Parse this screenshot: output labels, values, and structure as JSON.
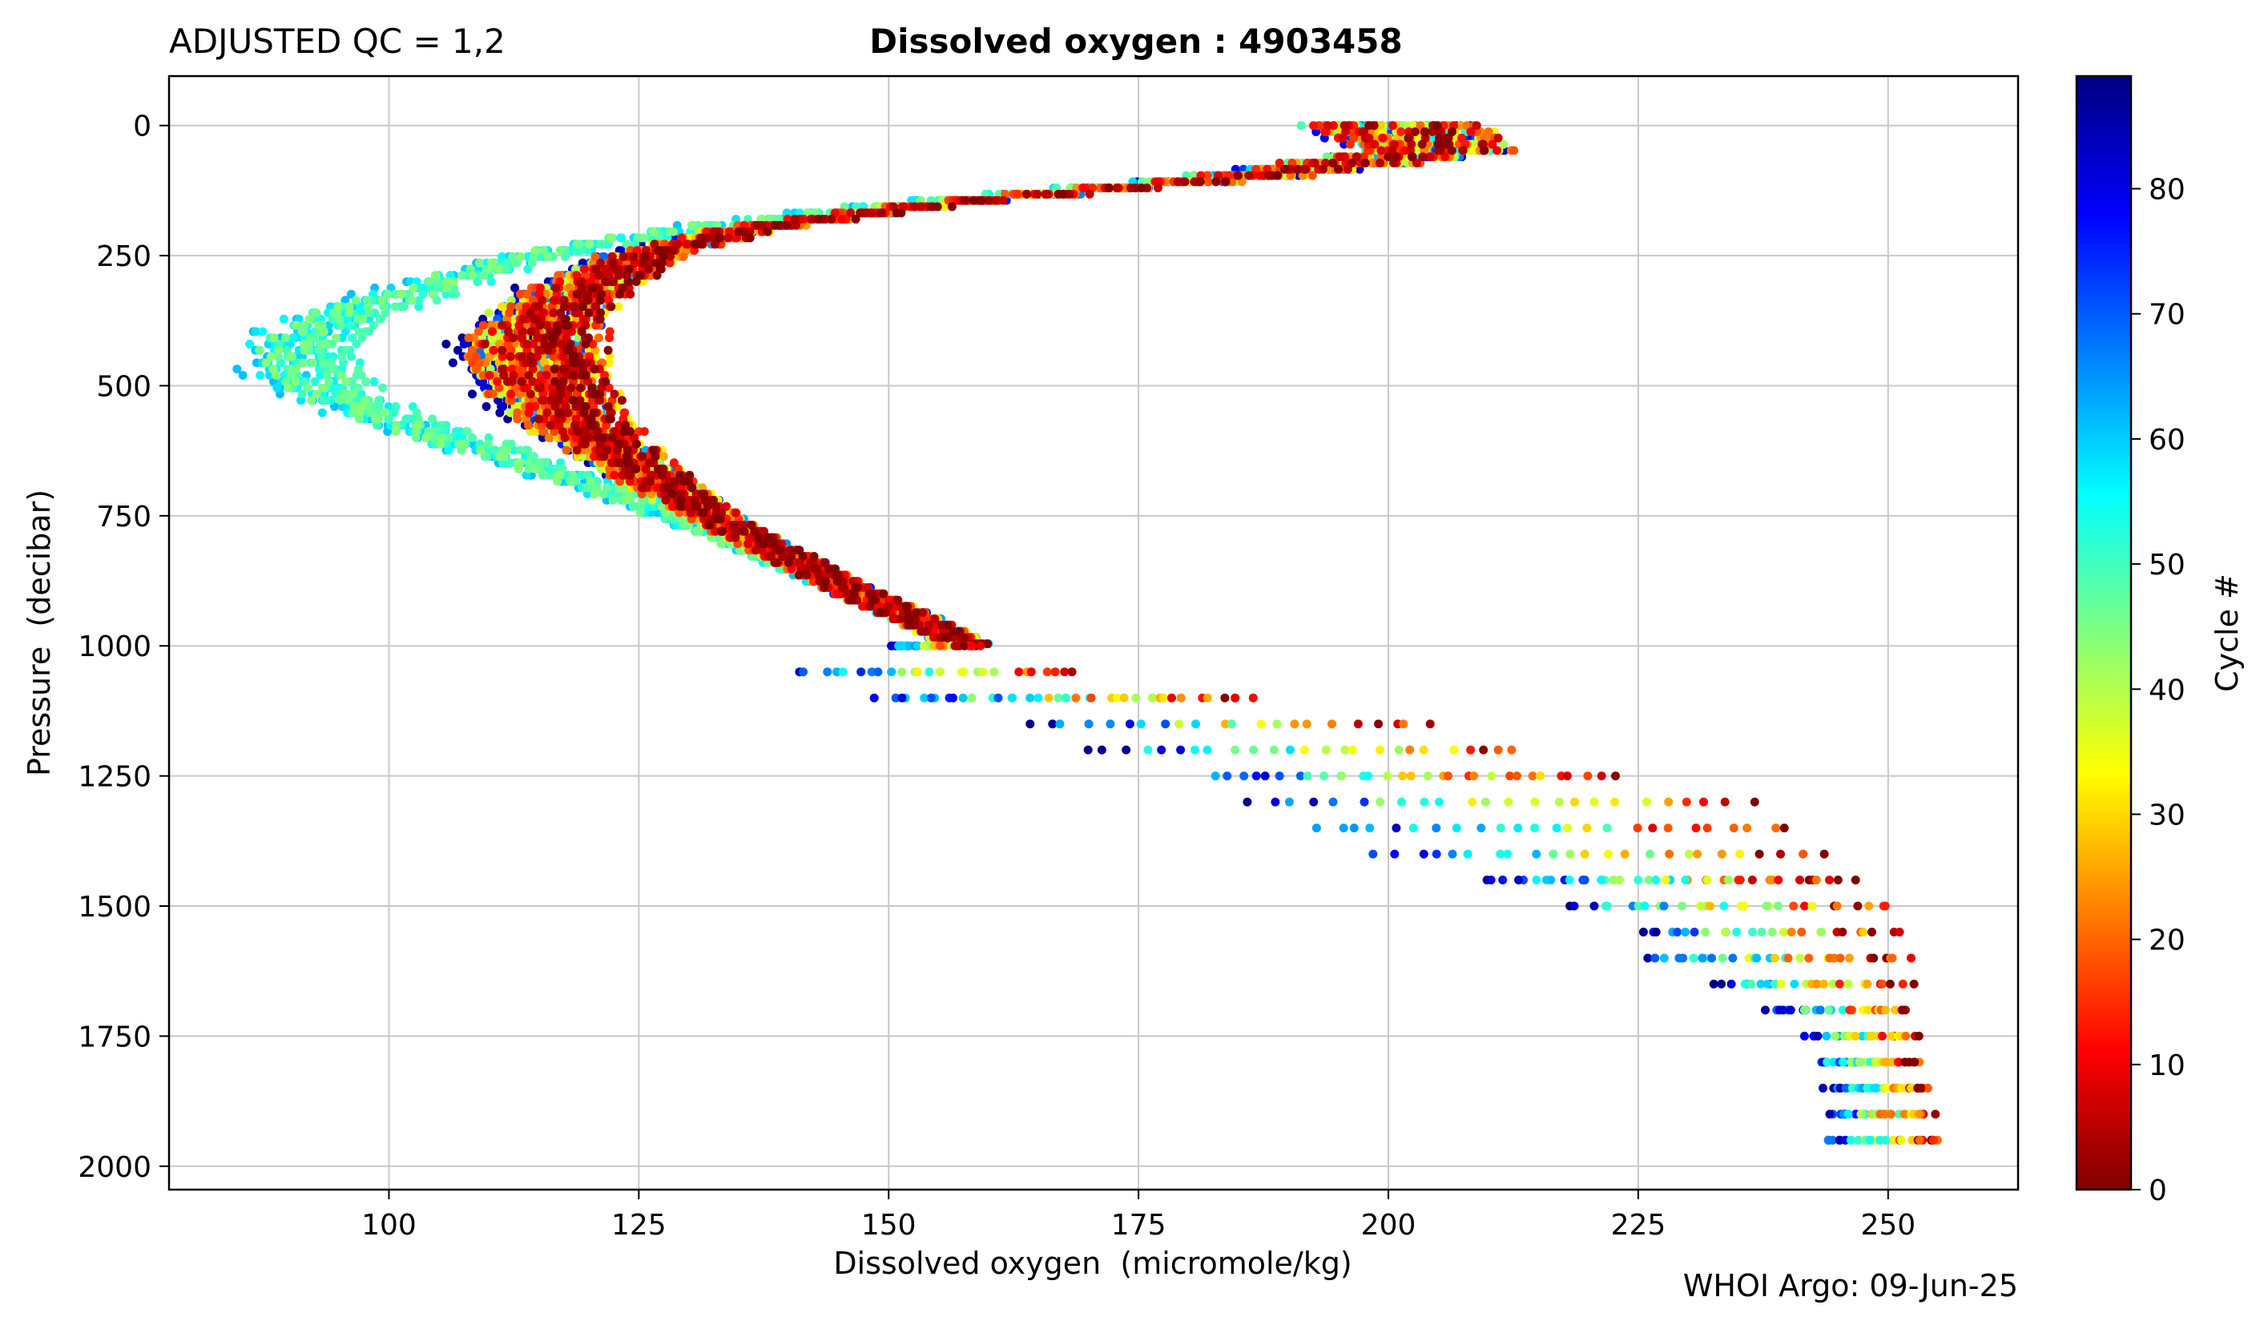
{
  "header": {
    "qc_label": "ADJUSTED QC = 1,2",
    "title": "Dissolved oxygen : 4903458"
  },
  "footer": {
    "credit": "WHOI Argo: 09-Jun-25"
  },
  "colors": {
    "colormap": "jet",
    "grid": "#c8c8c8",
    "background": "#ffffff"
  },
  "chart_data": {
    "type": "scatter",
    "title": "Dissolved oxygen : 4903458",
    "xlabel": "Dissolved oxygen  (micromole/kg)",
    "ylabel": "Pressure  (decibar)",
    "xlim": [
      78,
      263
    ],
    "ylim": [
      2045,
      -95
    ],
    "y_inverted": true,
    "grid": true,
    "xticks": [
      100,
      125,
      150,
      175,
      200,
      225,
      250
    ],
    "yticks": [
      0,
      250,
      500,
      750,
      1000,
      1250,
      1500,
      1750,
      2000
    ],
    "colorbar": {
      "label": "Cycle #",
      "range": [
        0,
        89
      ],
      "ticks": [
        0,
        10,
        20,
        30,
        40,
        50,
        60,
        70,
        80
      ],
      "colormap": "jet"
    },
    "profile_template": {
      "pressure": [
        0,
        50,
        100,
        150,
        200,
        250,
        300,
        350,
        400,
        450,
        500,
        550,
        600,
        650,
        700,
        750,
        800,
        850,
        900,
        950,
        1000
      ],
      "oxygen": [
        200,
        205,
        185,
        155,
        135,
        125,
        120,
        116,
        114,
        114,
        115,
        117,
        120,
        124,
        128,
        132,
        137,
        142,
        147,
        153,
        158
      ]
    },
    "deep_trend": {
      "pressure": [
        1000,
        1050,
        1100,
        1150,
        1200,
        1250,
        1300,
        1350,
        1400,
        1450,
        1500,
        1550,
        1600,
        1650,
        1700,
        1750,
        1800,
        1850,
        1900,
        1950
      ],
      "oxygen_min": [
        150,
        141,
        149,
        164,
        170,
        183,
        186,
        193,
        199,
        210,
        218,
        225,
        226,
        233,
        238,
        242,
        243,
        244,
        244,
        244
      ],
      "oxygen_max": [
        159,
        169,
        186,
        204,
        213,
        222,
        236,
        240,
        243,
        246,
        250,
        251,
        252,
        252,
        252,
        253,
        253,
        254,
        254,
        255
      ]
    },
    "cycles": [
      1,
      89
    ]
  }
}
